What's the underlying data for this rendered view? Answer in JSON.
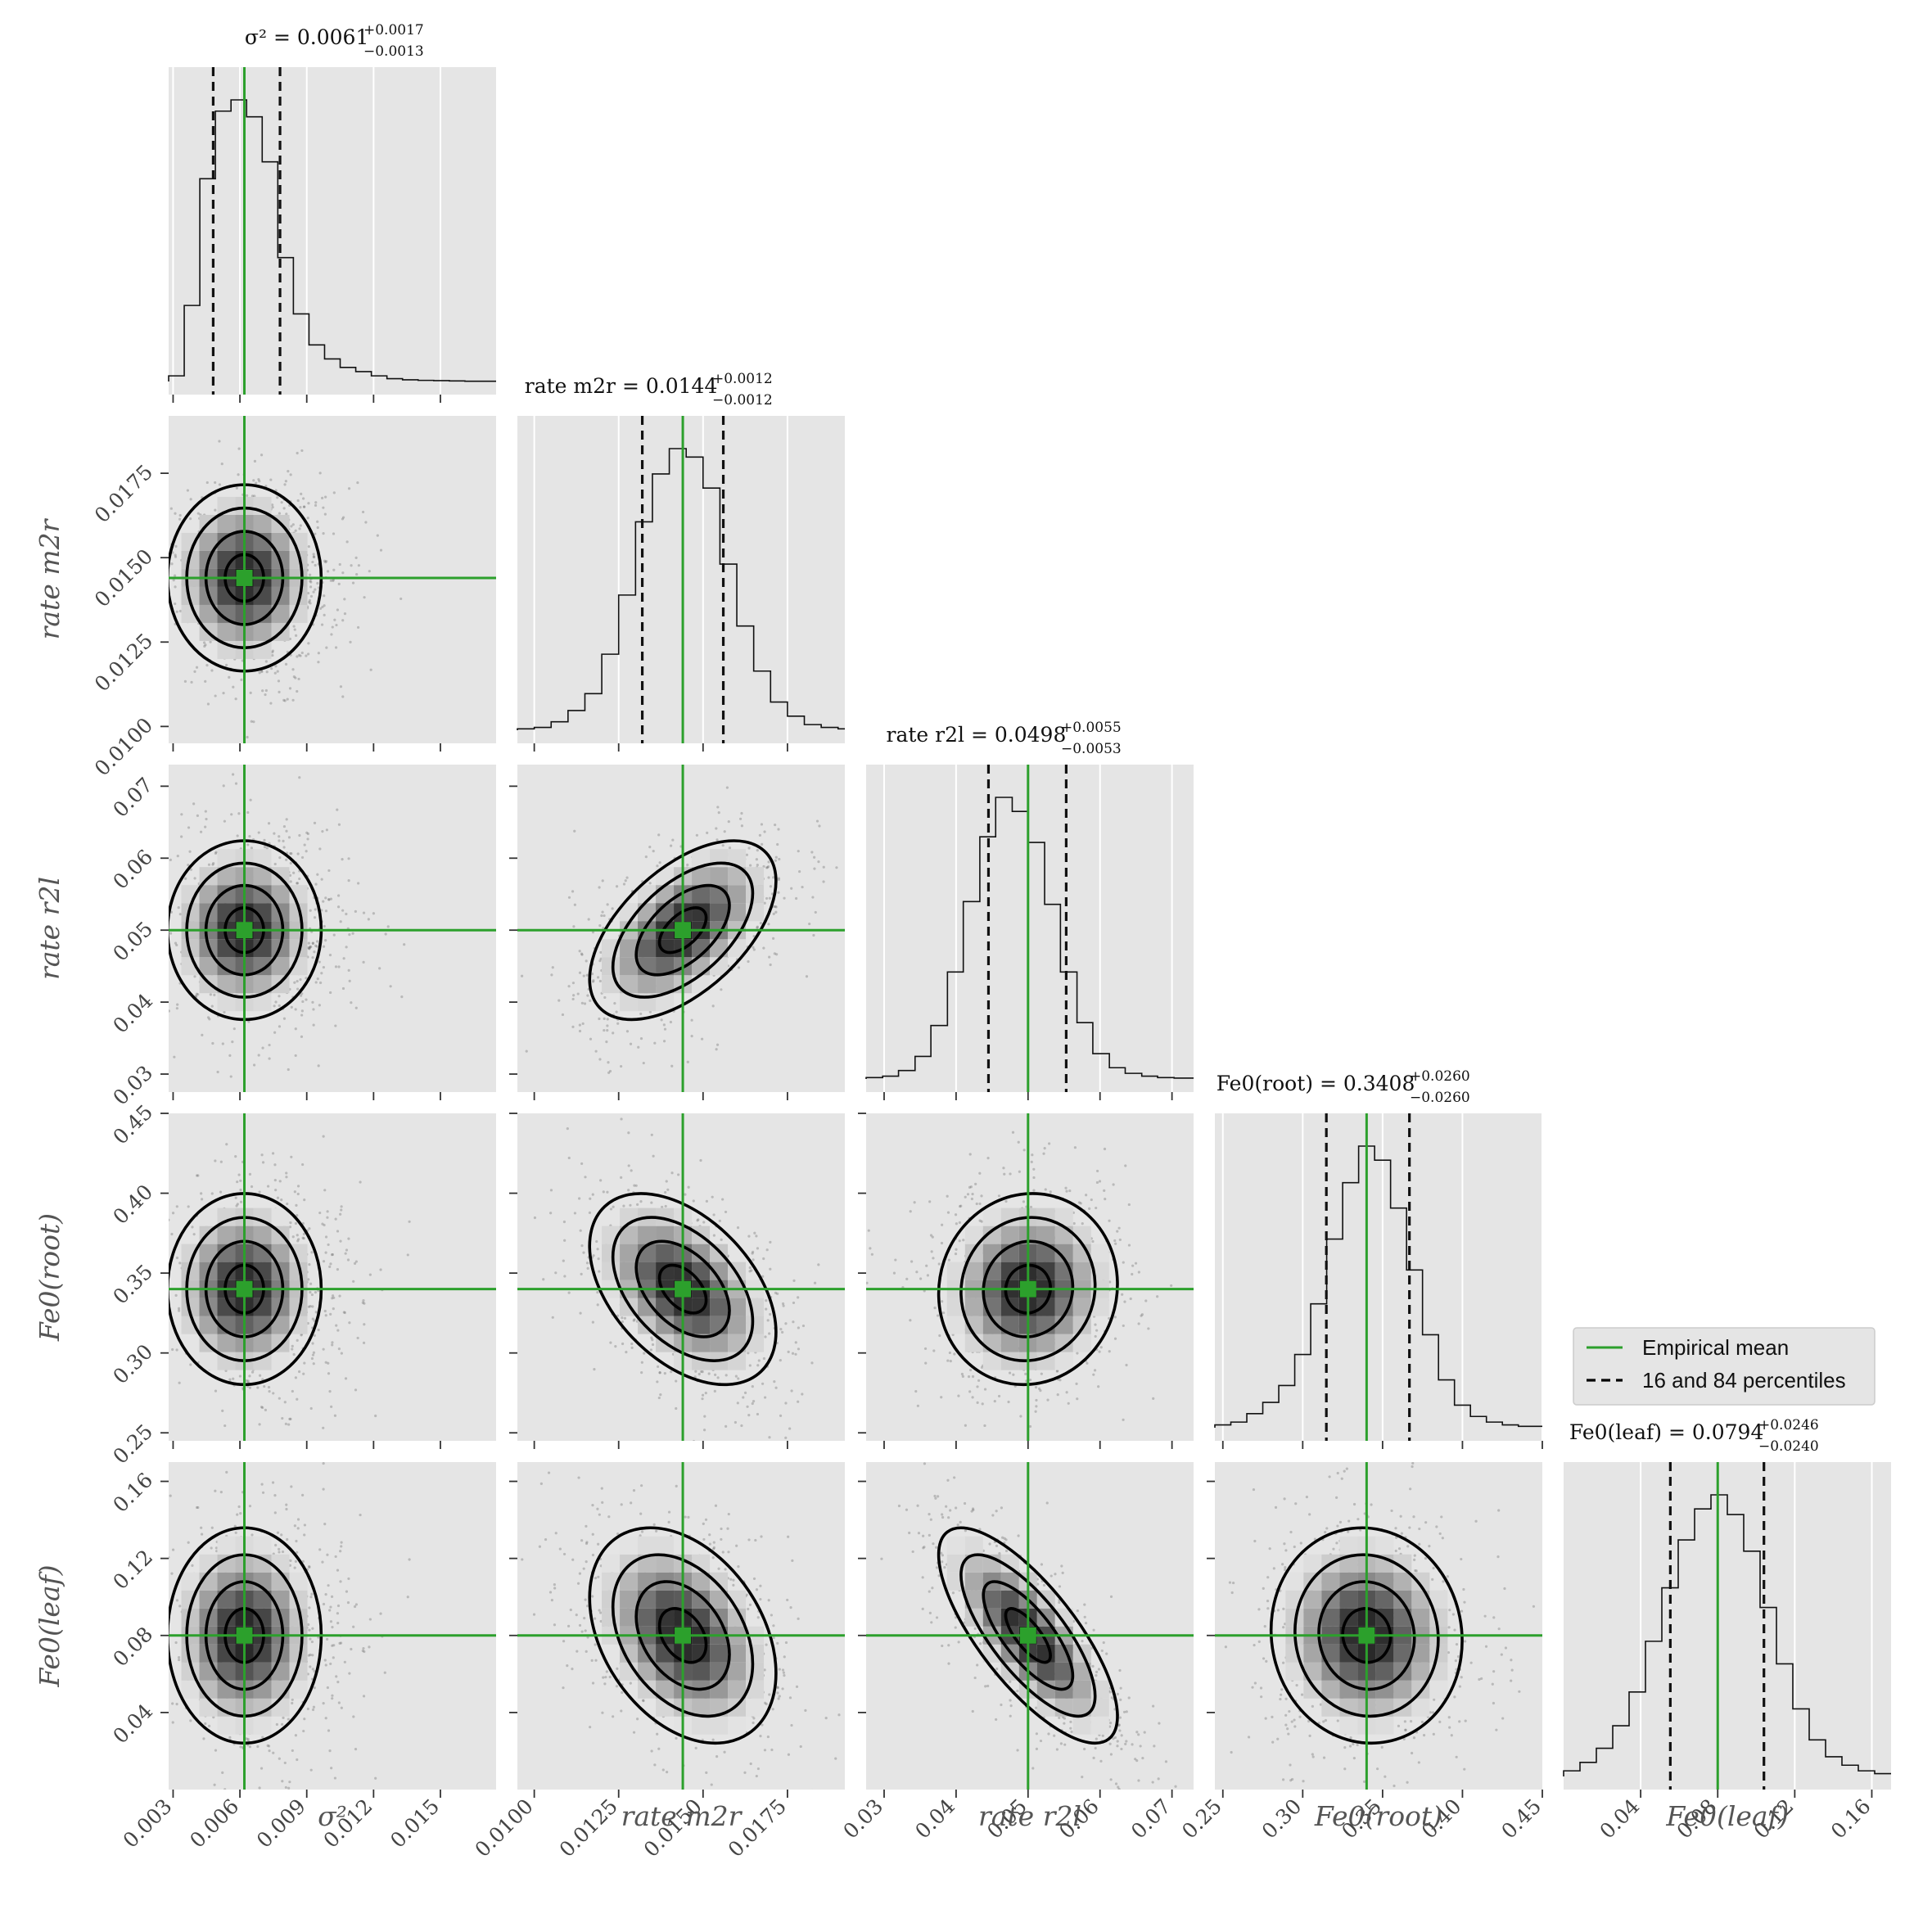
{
  "chart_data": {
    "type": "corner",
    "parameters": [
      {
        "name": "sigma2",
        "label": "σ²",
        "range": [
          0.0028,
          0.0175
        ],
        "ticks": [
          0.003,
          0.006,
          0.009,
          0.012,
          0.015
        ],
        "tick_labels": [
          "0.003",
          "0.006",
          "0.009",
          "0.012",
          "0.015"
        ],
        "mean": 0.0062,
        "q16": 0.0048,
        "q84": 0.0078,
        "title": {
          "lhs": "σ²",
          "value": "0.0061",
          "plus": "+0.0017",
          "minus": "−0.0013"
        },
        "hist_x": [
          0.0028,
          0.0035,
          0.0042,
          0.0049,
          0.0056,
          0.0063,
          0.007,
          0.0077,
          0.0084,
          0.0091,
          0.0098,
          0.0105,
          0.0112,
          0.0119,
          0.0126,
          0.0133,
          0.014,
          0.0147,
          0.0154,
          0.0161,
          0.0168,
          0.0175
        ],
        "hist_counts": [
          0.02,
          0.27,
          0.72,
          0.96,
          1.0,
          0.94,
          0.78,
          0.44,
          0.24,
          0.13,
          0.08,
          0.05,
          0.035,
          0.02,
          0.01,
          0.006,
          0.004,
          0.003,
          0.002,
          0.001,
          0.001
        ]
      },
      {
        "name": "rate_m2r",
        "label": "rate m2r",
        "range": [
          0.0095,
          0.0192
        ],
        "ticks": [
          0.01,
          0.0125,
          0.015,
          0.0175
        ],
        "tick_labels": [
          "0.0100",
          "0.0125",
          "0.0150",
          "0.0175"
        ],
        "mean": 0.0144,
        "q16": 0.0132,
        "q84": 0.0156,
        "title": {
          "lhs": "rate m2r",
          "value": "0.0144",
          "plus": "+0.0012",
          "minus": "−0.0012"
        },
        "hist_x": [
          0.0095,
          0.01,
          0.0105,
          0.011,
          0.0115,
          0.012,
          0.0125,
          0.013,
          0.0135,
          0.014,
          0.0145,
          0.015,
          0.0155,
          0.016,
          0.0165,
          0.017,
          0.0175,
          0.018,
          0.0185,
          0.019,
          0.0192
        ],
        "hist_counts": [
          0.005,
          0.01,
          0.03,
          0.07,
          0.13,
          0.27,
          0.48,
          0.74,
          0.91,
          1.0,
          0.97,
          0.86,
          0.59,
          0.37,
          0.21,
          0.1,
          0.05,
          0.02,
          0.01,
          0.005
        ]
      },
      {
        "name": "rate_r2l",
        "label": "rate r2l",
        "range": [
          0.0275,
          0.073
        ],
        "ticks": [
          0.03,
          0.04,
          0.05,
          0.06,
          0.07
        ],
        "tick_labels": [
          "0.03",
          "0.04",
          "0.05",
          "0.06",
          "0.07"
        ],
        "mean": 0.05,
        "q16": 0.0445,
        "q84": 0.0553,
        "title": {
          "lhs": "rate r2l",
          "value": "0.0498",
          "plus": "+0.0055",
          "minus": "−0.0053"
        },
        "hist_x": [
          0.0275,
          0.0298,
          0.032,
          0.0343,
          0.0365,
          0.0388,
          0.041,
          0.0433,
          0.0455,
          0.0478,
          0.05,
          0.0523,
          0.0545,
          0.0568,
          0.059,
          0.0613,
          0.0635,
          0.0658,
          0.068,
          0.0703,
          0.073
        ],
        "hist_counts": [
          0.005,
          0.01,
          0.03,
          0.08,
          0.19,
          0.38,
          0.63,
          0.86,
          1.0,
          0.95,
          0.84,
          0.62,
          0.38,
          0.2,
          0.09,
          0.04,
          0.02,
          0.01,
          0.005,
          0.003
        ]
      },
      {
        "name": "Fe0_root",
        "label": "Fe0(root)",
        "range": [
          0.245,
          0.45
        ],
        "ticks": [
          0.25,
          0.3,
          0.35,
          0.4,
          0.45
        ],
        "tick_labels": [
          "0.25",
          "0.30",
          "0.35",
          "0.40",
          "0.45"
        ],
        "mean": 0.34,
        "q16": 0.3148,
        "q84": 0.3668,
        "title": {
          "lhs": "Fe0(root)",
          "value": "0.3408",
          "plus": "+0.0260",
          "minus": "−0.0260"
        },
        "hist_x": [
          0.245,
          0.255,
          0.265,
          0.275,
          0.285,
          0.295,
          0.305,
          0.315,
          0.325,
          0.335,
          0.345,
          0.355,
          0.365,
          0.375,
          0.385,
          0.395,
          0.405,
          0.415,
          0.425,
          0.435,
          0.45
        ],
        "hist_counts": [
          0.01,
          0.02,
          0.05,
          0.09,
          0.15,
          0.26,
          0.44,
          0.67,
          0.87,
          1.0,
          0.95,
          0.78,
          0.56,
          0.33,
          0.17,
          0.08,
          0.04,
          0.02,
          0.01,
          0.005
        ]
      },
      {
        "name": "Fe0_leaf",
        "label": "Fe0(leaf)",
        "range": [
          0.0,
          0.17
        ],
        "ticks": [
          0.04,
          0.08,
          0.12,
          0.16
        ],
        "tick_labels": [
          "0.04",
          "0.08",
          "0.12",
          "0.16"
        ],
        "mean": 0.08,
        "q16": 0.0554,
        "q84": 0.104,
        "title": {
          "lhs": "Fe0(leaf)",
          "value": "0.0794",
          "plus": "+0.0246",
          "minus": "−0.0240"
        },
        "hist_x": [
          0.0,
          0.0085,
          0.017,
          0.0255,
          0.034,
          0.0425,
          0.051,
          0.0595,
          0.068,
          0.0765,
          0.085,
          0.0935,
          0.102,
          0.1105,
          0.119,
          0.1275,
          0.136,
          0.1445,
          0.153,
          0.1615,
          0.17
        ],
        "hist_counts": [
          0.02,
          0.05,
          0.1,
          0.18,
          0.3,
          0.48,
          0.67,
          0.84,
          0.95,
          1.0,
          0.93,
          0.8,
          0.6,
          0.4,
          0.24,
          0.13,
          0.07,
          0.04,
          0.02,
          0.01
        ]
      }
    ],
    "correlations": [
      [
        1,
        0,
        0,
        0,
        0
      ],
      [
        0,
        1,
        0.55,
        -0.45,
        -0.35
      ],
      [
        0,
        0.55,
        1,
        0.05,
        -0.75
      ],
      [
        0,
        -0.45,
        0.05,
        1,
        -0.05
      ],
      [
        0,
        -0.35,
        -0.75,
        -0.05,
        1
      ]
    ],
    "legend": {
      "placement": "right",
      "items": [
        {
          "label": "Empirical mean",
          "style": "solid",
          "color": "#2ca02c"
        },
        {
          "label": "16 and 84 percentiles",
          "style": "dashed",
          "color": "#000000"
        }
      ]
    },
    "colors": {
      "panel_bg": "#e5e5e5",
      "mean": "#2ca02c",
      "contour": "#000000"
    }
  }
}
